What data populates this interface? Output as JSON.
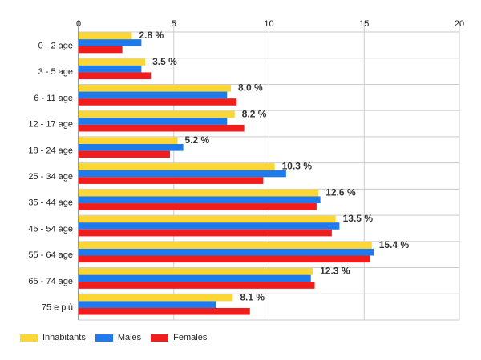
{
  "chart_data": {
    "type": "bar",
    "orientation": "horizontal",
    "categories": [
      "0 - 2 age",
      "3 - 5 age",
      "6 - 11 age",
      "12 - 17 age",
      "18 - 24 age",
      "25 - 34 age",
      "35 - 44 age",
      "45 - 54 age",
      "55 - 64 age",
      "65 - 74 age",
      "75 e più"
    ],
    "series": [
      {
        "name": "Inhabitants",
        "color": "#FBD634",
        "values": [
          2.8,
          3.5,
          8.0,
          8.2,
          5.2,
          10.3,
          12.6,
          13.5,
          15.4,
          12.3,
          8.1
        ]
      },
      {
        "name": "Males",
        "color": "#1F7BEB",
        "values": [
          3.3,
          3.3,
          7.8,
          7.8,
          5.5,
          10.9,
          12.7,
          13.7,
          15.5,
          12.2,
          7.2
        ]
      },
      {
        "name": "Females",
        "color": "#F11C1C",
        "values": [
          2.3,
          3.8,
          8.3,
          8.7,
          4.8,
          9.7,
          12.5,
          13.3,
          15.3,
          12.4,
          9.0
        ]
      }
    ],
    "data_labels": [
      "2.8 %",
      "3.5 %",
      "8.0 %",
      "8.2 %",
      "5.2 %",
      "10.3 %",
      "12.6 %",
      "13.5 %",
      "15.4 %",
      "12.3 %",
      "8.1 %"
    ],
    "x_ticks": [
      "0",
      "5",
      "10",
      "15",
      "20"
    ],
    "xlim": [
      0,
      20
    ],
    "grid": true,
    "legend_position": "bottom-left"
  }
}
